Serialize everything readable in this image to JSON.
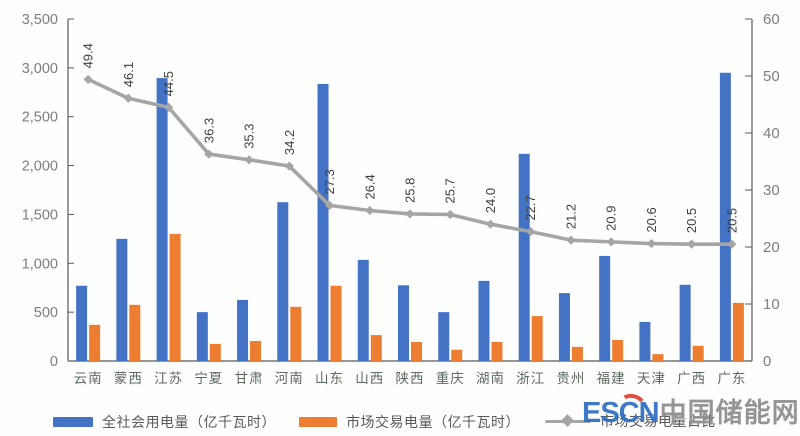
{
  "chart_data": {
    "type": "bar",
    "title": "",
    "categories": [
      "云南",
      "蒙西",
      "江苏",
      "宁夏",
      "甘肃",
      "河南",
      "山东",
      "山西",
      "陕西",
      "重庆",
      "湖南",
      "浙江",
      "贵州",
      "福建",
      "天津",
      "广西",
      "广东"
    ],
    "series": [
      {
        "name": "全社会用电量（亿千瓦时）",
        "type": "bar",
        "axis": "left",
        "color": "#4472C4",
        "values": [
          770,
          1250,
          2895,
          500,
          625,
          1625,
          2835,
          1035,
          775,
          500,
          820,
          2120,
          695,
          1075,
          400,
          780,
          2950
        ]
      },
      {
        "name": "市场交易电量（亿千瓦时）",
        "type": "bar",
        "axis": "left",
        "color": "#ED7D31",
        "values": [
          370,
          575,
          1300,
          175,
          205,
          555,
          770,
          265,
          195,
          115,
          195,
          460,
          145,
          215,
          70,
          155,
          595
        ]
      },
      {
        "name": "市场交易电量占比",
        "type": "line",
        "axis": "right",
        "color": "#A5A5A5",
        "values": [
          49.4,
          46.1,
          44.5,
          36.3,
          35.3,
          34.2,
          27.3,
          26.4,
          25.8,
          25.7,
          24.0,
          22.7,
          21.2,
          20.9,
          20.6,
          20.5,
          20.5
        ],
        "point_labels": [
          "49.4",
          "46.1",
          "44.5",
          "36.3",
          "35.3",
          "34.2",
          "27.3",
          "26.4",
          "25.8",
          "25.7",
          "24.0",
          "22.7",
          "21.2",
          "20.9",
          "20.6",
          "20.5",
          "20.5"
        ]
      }
    ],
    "left_axis": {
      "min": 0,
      "max": 3500,
      "step": 500,
      "tick_labels": [
        "0",
        "500",
        "1,000",
        "1,500",
        "2,000",
        "2,500",
        "3,000",
        "3,500"
      ]
    },
    "right_axis": {
      "min": 0,
      "max": 60,
      "step": 10,
      "tick_labels": [
        "0",
        "10",
        "20",
        "30",
        "40",
        "50",
        "60"
      ]
    },
    "legend_position": "bottom",
    "grid": false
  },
  "colors": {
    "bar_primary": "#4472C4",
    "bar_secondary": "#ED7D31",
    "line": "#A5A5A5",
    "axis_line": "#595959",
    "tick_text": "#7d7d7d",
    "category_text": "#5d6a5e",
    "data_label_text": "#3f3f3f",
    "legend_text": "#595959"
  },
  "watermark": {
    "logo": "ESCN",
    "site_name": "中国储能网"
  }
}
